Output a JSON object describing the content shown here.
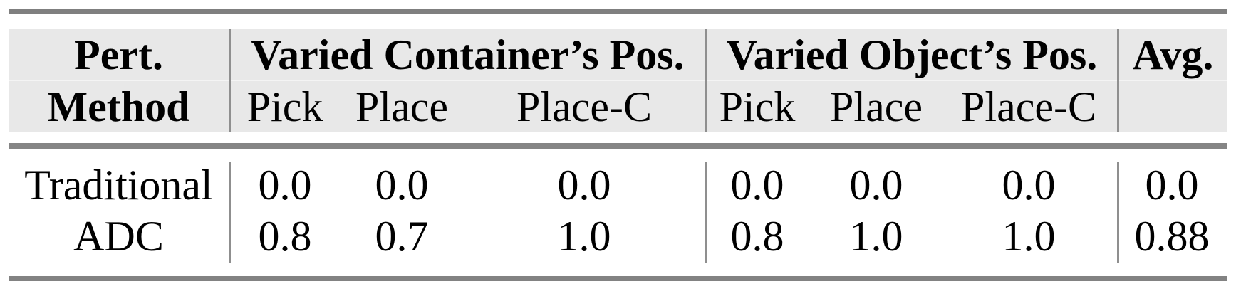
{
  "table": {
    "header": {
      "stub_line1": "Pert.",
      "stub_line2": "Method",
      "group1_label": "Varied Container’s Pos.",
      "group2_label": "Varied Object’s Pos.",
      "avg_label": "Avg.",
      "group1_subheaders": [
        "Pick",
        "Place",
        "Place-C"
      ],
      "group2_subheaders": [
        "Pick",
        "Place",
        "Place-C"
      ]
    },
    "rows": [
      {
        "method": "Traditional",
        "container": [
          "0.0",
          "0.0",
          "0.0"
        ],
        "object": [
          "0.0",
          "0.0",
          "0.0"
        ],
        "avg": "0.0"
      },
      {
        "method": "ADC",
        "container": [
          "0.8",
          "0.7",
          "1.0"
        ],
        "object": [
          "0.8",
          "1.0",
          "1.0"
        ],
        "avg": "0.88"
      }
    ],
    "colors": {
      "header_background": "#e8e8e8",
      "rule_gray": "#7f7f7f",
      "separator_gray": "#8f8f8f",
      "text": "#000000"
    }
  }
}
